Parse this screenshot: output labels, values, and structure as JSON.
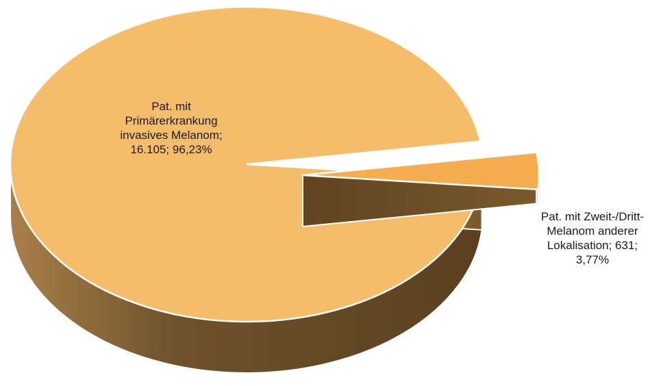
{
  "chart_data": {
    "type": "pie",
    "style": "3d-exploded",
    "slices": [
      {
        "label": "Pat. mit Primärerkrankung invasives Melanom",
        "value": 16105,
        "value_text": "16.105",
        "percent": 96.23,
        "percent_text": "96,23%",
        "label_lines": [
          "Pat. mit",
          "Primärerkrankung",
          "invasives Melanom;",
          "16.105;  96,23%"
        ],
        "color": "#f5bc6c",
        "side_color": "#7c5a2c"
      },
      {
        "label": "Pat. mit Zweit-/Dritt-Melanom anderer Lokalisation",
        "value": 631,
        "value_text": "631",
        "percent": 3.77,
        "percent_text": "3,77%",
        "label_lines": [
          "Pat. mit Zweit-/Dritt-",
          "Melanom anderer",
          "Lokalisation; 631;",
          "3,77%"
        ],
        "color": "#f4ae4f",
        "side_color": "#6e4f27"
      }
    ]
  }
}
